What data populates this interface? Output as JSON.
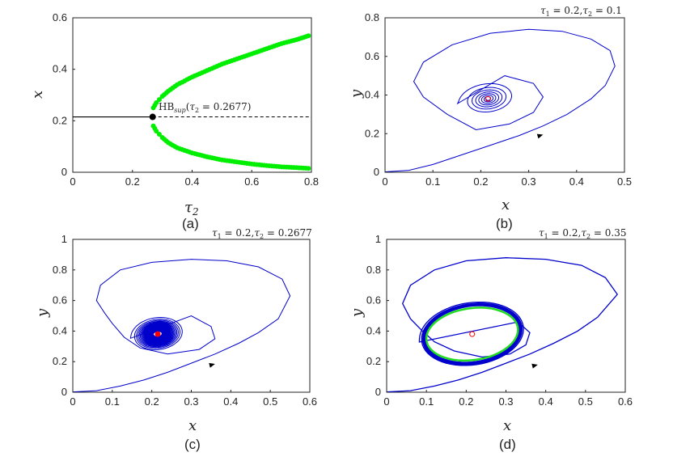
{
  "colors": {
    "stable_branch": "#000000",
    "cycle_branch": "#00ee00",
    "trajectory": "#0000cc",
    "equilibrium_marker": "#ff0000",
    "limit_cycle": "#22dd22"
  },
  "chart_data": [
    {
      "type": "scatter",
      "panel_label": "(a)",
      "xlabel": "τ2",
      "ylabel": "x",
      "xlim": [
        0,
        0.8
      ],
      "ylim": [
        0,
        0.6
      ],
      "xticks": [
        "0",
        "0.2",
        "0.4",
        "0.6",
        "0.8"
      ],
      "yticks": [
        "0",
        "0.2",
        "0.4",
        "0.6"
      ],
      "annotation": "HBsup(τ2 = 0.2677)",
      "hopf_point": {
        "x": 0.2677,
        "y": 0.215
      },
      "stable_line": {
        "x": [
          0,
          0.2677
        ],
        "y": [
          0.215,
          0.215
        ]
      },
      "unstable_line": {
        "x": [
          0.2677,
          0.8
        ],
        "y": [
          0.215,
          0.215
        ]
      },
      "series": [
        {
          "values": {
            "x": [
              0.27,
              0.28,
              0.3,
              0.32,
              0.35,
              0.4,
              0.45,
              0.5,
              0.55,
              0.6,
              0.65,
              0.7,
              0.75,
              0.79
            ],
            "y": [
              0.25,
              0.27,
              0.295,
              0.315,
              0.34,
              0.37,
              0.395,
              0.42,
              0.44,
              0.46,
              0.48,
              0.5,
              0.515,
              0.53
            ]
          }
        },
        {
          "values": {
            "x": [
              0.27,
              0.28,
              0.3,
              0.32,
              0.35,
              0.4,
              0.45,
              0.5,
              0.55,
              0.6,
              0.65,
              0.7,
              0.75,
              0.79
            ],
            "y": [
              0.18,
              0.16,
              0.135,
              0.115,
              0.095,
              0.075,
              0.06,
              0.048,
              0.04,
              0.032,
              0.026,
              0.021,
              0.018,
              0.015
            ]
          }
        }
      ]
    },
    {
      "type": "line",
      "panel_label": "(b)",
      "title": "τ1 = 0.2,τ2 = 0.1",
      "xlabel": "x",
      "ylabel": "y",
      "xlim": [
        0,
        0.5
      ],
      "ylim": [
        0,
        0.8
      ],
      "xticks": [
        "0",
        "0.1",
        "0.2",
        "0.3",
        "0.4",
        "0.5"
      ],
      "yticks": [
        "0",
        "0.2",
        "0.4",
        "0.6",
        "0.8"
      ],
      "equilibrium": {
        "x": 0.215,
        "y": 0.38
      },
      "behaviour": "spiral to equilibrium"
    },
    {
      "type": "line",
      "panel_label": "(c)",
      "title": "τ1 = 0.2,τ2 = 0.2677",
      "xlabel": "x",
      "ylabel": "y",
      "xlim": [
        0,
        0.6
      ],
      "ylim": [
        0,
        1
      ],
      "xticks": [
        "0",
        "0.1",
        "0.2",
        "0.3",
        "0.4",
        "0.5",
        "0.6"
      ],
      "yticks": [
        "0",
        "0.2",
        "0.4",
        "0.6",
        "0.8",
        "1"
      ],
      "equilibrium": {
        "x": 0.215,
        "y": 0.38
      },
      "behaviour": "slow spiral at Hopf point"
    },
    {
      "type": "line",
      "panel_label": "(d)",
      "title": "τ1 = 0.2,τ2 = 0.35",
      "xlabel": "x",
      "ylabel": "y",
      "xlim": [
        0,
        0.6
      ],
      "ylim": [
        0,
        1
      ],
      "xticks": [
        "0",
        "0.1",
        "0.2",
        "0.3",
        "0.4",
        "0.5",
        "0.6"
      ],
      "yticks": [
        "0",
        "0.2",
        "0.4",
        "0.6",
        "0.8",
        "1"
      ],
      "equilibrium": {
        "x": 0.215,
        "y": 0.38
      },
      "behaviour": "limit cycle"
    }
  ]
}
